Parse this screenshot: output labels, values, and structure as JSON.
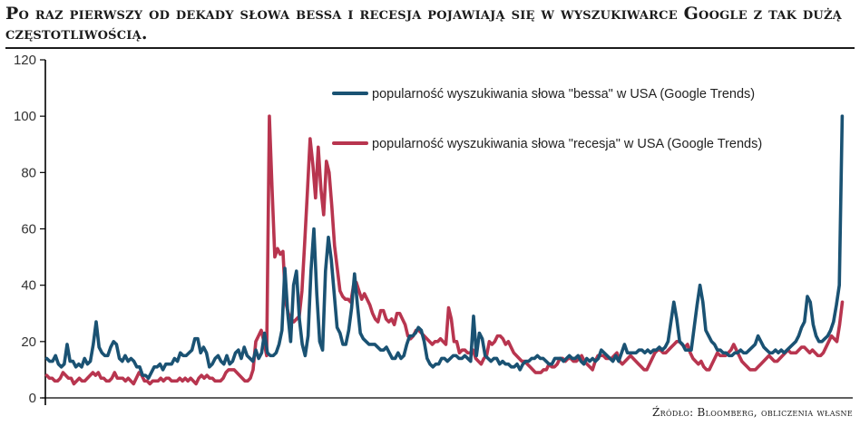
{
  "title": "Po raz pierwszy od dekady słowa bessa i recesja pojawiają się w wyszukiwarce Google z tak dużą częstotliwością.",
  "source": "Źródło: Bloomberg, obliczenia własne",
  "chart_data": {
    "type": "line",
    "ylim": [
      0,
      120
    ],
    "yticks": [
      "0",
      "20",
      "40",
      "60",
      "80",
      "100",
      "120"
    ],
    "grid": false,
    "legend_position": "top-right",
    "colors": {
      "bessa": "#1a5273",
      "recesja": "#b8354f",
      "axis": "#000000"
    },
    "series": [
      {
        "name": "popularność wyszukiwania słowa \"bessa\" w USA (Google Trends)",
        "color": "#1a5273",
        "values": [
          14,
          13,
          13,
          15,
          12,
          11,
          12,
          19,
          13,
          13,
          11,
          12,
          11,
          14,
          12,
          13,
          19,
          27,
          18,
          16,
          15,
          15,
          18,
          20,
          19,
          14,
          13,
          15,
          13,
          14,
          13,
          11,
          11,
          8,
          8,
          7,
          9,
          11,
          11,
          12,
          10,
          12,
          12,
          12,
          14,
          13,
          16,
          15,
          15,
          16,
          17,
          21,
          21,
          16,
          18,
          16,
          11,
          12,
          14,
          15,
          13,
          12,
          15,
          12,
          13,
          16,
          17,
          14,
          18,
          15,
          14,
          13,
          17,
          14,
          16,
          23,
          16,
          15,
          15,
          16,
          19,
          24,
          46,
          30,
          20,
          40,
          45,
          28,
          19,
          15,
          22,
          45,
          60,
          37,
          20,
          17,
          45,
          57,
          49,
          37,
          25,
          23,
          19,
          19,
          24,
          32,
          44,
          33,
          23,
          21,
          20,
          19,
          19,
          19,
          18,
          17,
          17,
          18,
          16,
          14,
          14,
          16,
          14,
          15,
          19,
          22,
          22,
          23,
          25,
          24,
          20,
          14,
          12,
          11,
          12,
          12,
          14,
          14,
          13,
          14,
          15,
          15,
          14,
          14,
          15,
          14,
          13,
          29,
          15,
          23,
          21,
          15,
          14,
          13,
          14,
          14,
          12,
          13,
          12,
          12,
          11,
          11,
          12,
          10,
          12,
          13,
          13,
          14,
          14,
          15,
          14,
          14,
          13,
          12,
          12,
          14,
          14,
          14,
          13,
          14,
          15,
          14,
          14,
          15,
          13,
          12,
          14,
          13,
          14,
          13,
          14,
          17,
          16,
          15,
          14,
          13,
          15,
          13,
          16,
          19,
          16,
          16,
          16,
          16,
          17,
          17,
          16,
          17,
          16,
          17,
          17,
          18,
          17,
          18,
          20,
          27,
          34,
          28,
          20,
          19,
          17,
          17,
          17,
          25,
          33,
          40,
          34,
          24,
          22,
          20,
          19,
          17,
          17,
          16,
          16,
          15,
          15,
          16,
          16,
          17,
          16,
          16,
          17,
          18,
          19,
          22,
          20,
          18,
          17,
          16,
          16,
          17,
          16,
          17,
          16,
          17,
          18,
          19,
          20,
          22,
          25,
          27,
          36,
          34,
          26,
          22,
          20,
          20,
          21,
          22,
          24,
          27,
          33,
          40,
          100
        ]
      },
      {
        "name": "popularność wyszukiwania słowa \"recesja\" w USA (Google Trends)",
        "color": "#b8354f",
        "values": [
          8,
          7,
          7,
          6,
          6,
          7,
          9,
          8,
          7,
          7,
          5,
          6,
          7,
          6,
          6,
          7,
          8,
          9,
          8,
          9,
          7,
          7,
          6,
          6,
          7,
          9,
          7,
          7,
          7,
          6,
          7,
          6,
          5,
          7,
          9,
          8,
          6,
          6,
          5,
          6,
          6,
          6,
          7,
          6,
          7,
          7,
          6,
          6,
          6,
          7,
          6,
          7,
          6,
          7,
          6,
          5,
          7,
          8,
          7,
          8,
          7,
          7,
          6,
          6,
          6,
          7,
          9,
          10,
          10,
          10,
          9,
          8,
          7,
          6,
          6,
          7,
          10,
          20,
          22,
          24,
          20,
          15,
          100,
          74,
          50,
          53,
          51,
          52,
          34,
          30,
          28,
          27,
          28,
          29,
          38,
          55,
          73,
          92,
          83,
          71,
          89,
          74,
          65,
          84,
          80,
          68,
          54,
          46,
          38,
          36,
          35,
          35,
          34,
          40,
          41,
          38,
          35,
          37,
          35,
          33,
          30,
          28,
          27,
          31,
          31,
          28,
          27,
          28,
          26,
          30,
          30,
          28,
          26,
          22,
          21,
          22,
          24,
          24,
          23,
          22,
          21,
          20,
          19,
          20,
          20,
          21,
          20,
          19,
          32,
          28,
          20,
          20,
          16,
          17,
          17,
          16,
          16,
          17,
          14,
          13,
          12,
          14,
          15,
          20,
          19,
          20,
          22,
          22,
          21,
          19,
          20,
          18,
          16,
          15,
          14,
          13,
          13,
          12,
          11,
          10,
          9,
          9,
          9,
          10,
          10,
          12,
          11,
          11,
          12,
          14,
          14,
          13,
          14,
          14,
          13,
          13,
          14,
          15,
          13,
          12,
          11,
          10,
          13,
          15,
          15,
          15,
          14,
          14,
          14,
          15,
          16,
          13,
          12,
          13,
          14,
          15,
          14,
          13,
          12,
          11,
          10,
          10,
          12,
          14,
          16,
          17,
          17,
          16,
          16,
          17,
          18,
          19,
          20,
          20,
          19,
          18,
          19,
          16,
          14,
          13,
          12,
          13,
          11,
          10,
          10,
          12,
          14,
          16,
          15,
          15,
          15,
          16,
          17,
          19,
          17,
          15,
          13,
          12,
          11,
          10,
          10,
          10,
          11,
          12,
          13,
          14,
          15,
          14,
          13,
          13,
          14,
          15,
          16,
          17,
          16,
          16,
          16,
          17,
          18,
          18,
          17,
          16,
          17,
          16,
          15,
          15,
          16,
          18,
          20,
          22,
          21,
          20,
          26,
          34
        ]
      }
    ]
  }
}
